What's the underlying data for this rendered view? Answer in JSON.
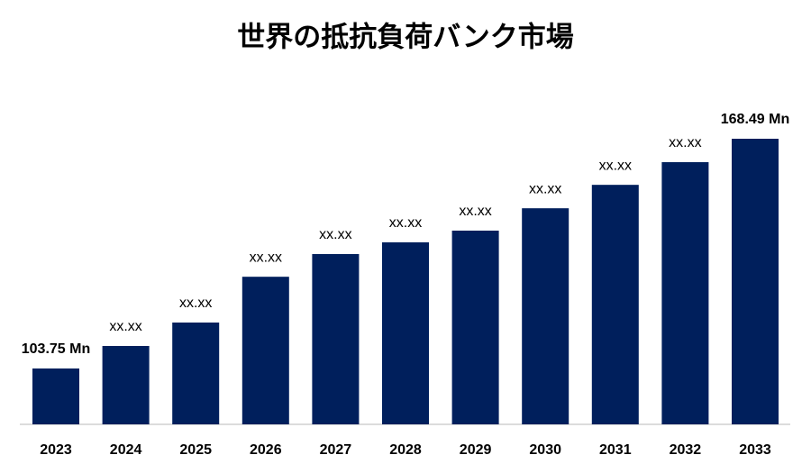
{
  "chart_data": {
    "type": "bar",
    "title": "世界の抵抗負荷バンク市場",
    "categories": [
      "2023",
      "2024",
      "2025",
      "2026",
      "2027",
      "2028",
      "2029",
      "2030",
      "2031",
      "2032",
      "2033"
    ],
    "values": [
      103.75,
      110.1,
      116.7,
      129.6,
      136.0,
      139.3,
      142.6,
      148.9,
      155.5,
      161.9,
      168.49
    ],
    "value_labels": [
      "103.75 Mn",
      "xx.xx",
      "xx.xx",
      "xx.xx",
      "xx.xx",
      "xx.xx",
      "xx.xx",
      "xx.xx",
      "xx.xx",
      "xx.xx",
      "168.49 Mn"
    ],
    "color": "#001f5c"
  }
}
